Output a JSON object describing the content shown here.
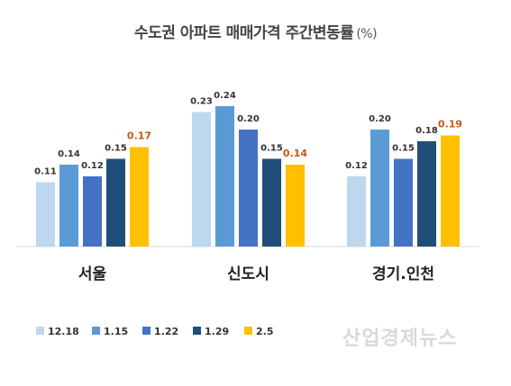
{
  "title": "수도권 아파트 매매가격 주간변동률",
  "title_unit": "(%)",
  "watermark": "산업경제뉴스",
  "chart_data": {
    "type": "bar",
    "categories": [
      "서울",
      "신도시",
      "경기.인천"
    ],
    "series": [
      {
        "name": "12.18",
        "color": "#bdd7ee",
        "values": [
          0.11,
          0.23,
          0.12
        ]
      },
      {
        "name": "1.15",
        "color": "#5b9bd5",
        "values": [
          0.14,
          0.24,
          0.2
        ]
      },
      {
        "name": "1.22",
        "color": "#4472c4",
        "values": [
          0.12,
          0.2,
          0.15
        ]
      },
      {
        "name": "1.29",
        "color": "#1f4e79",
        "values": [
          0.15,
          0.15,
          0.18
        ]
      },
      {
        "name": "2.5",
        "color": "#ffc000",
        "values": [
          0.17,
          0.14,
          0.19
        ]
      }
    ],
    "value_labels": [
      [
        "0.11",
        "0.14",
        "0.12",
        "0.15",
        "0.17"
      ],
      [
        "0.23",
        "0.24",
        "0.20",
        "0.15",
        "0.14"
      ],
      [
        "0.12",
        "0.20",
        "0.15",
        "0.18",
        "0.19"
      ]
    ],
    "highlight_label_color": "#c55a11",
    "ylim": [
      0,
      0.24
    ],
    "grid": false,
    "legend_position": "bottom-left",
    "xlabel": "",
    "ylabel": ""
  }
}
